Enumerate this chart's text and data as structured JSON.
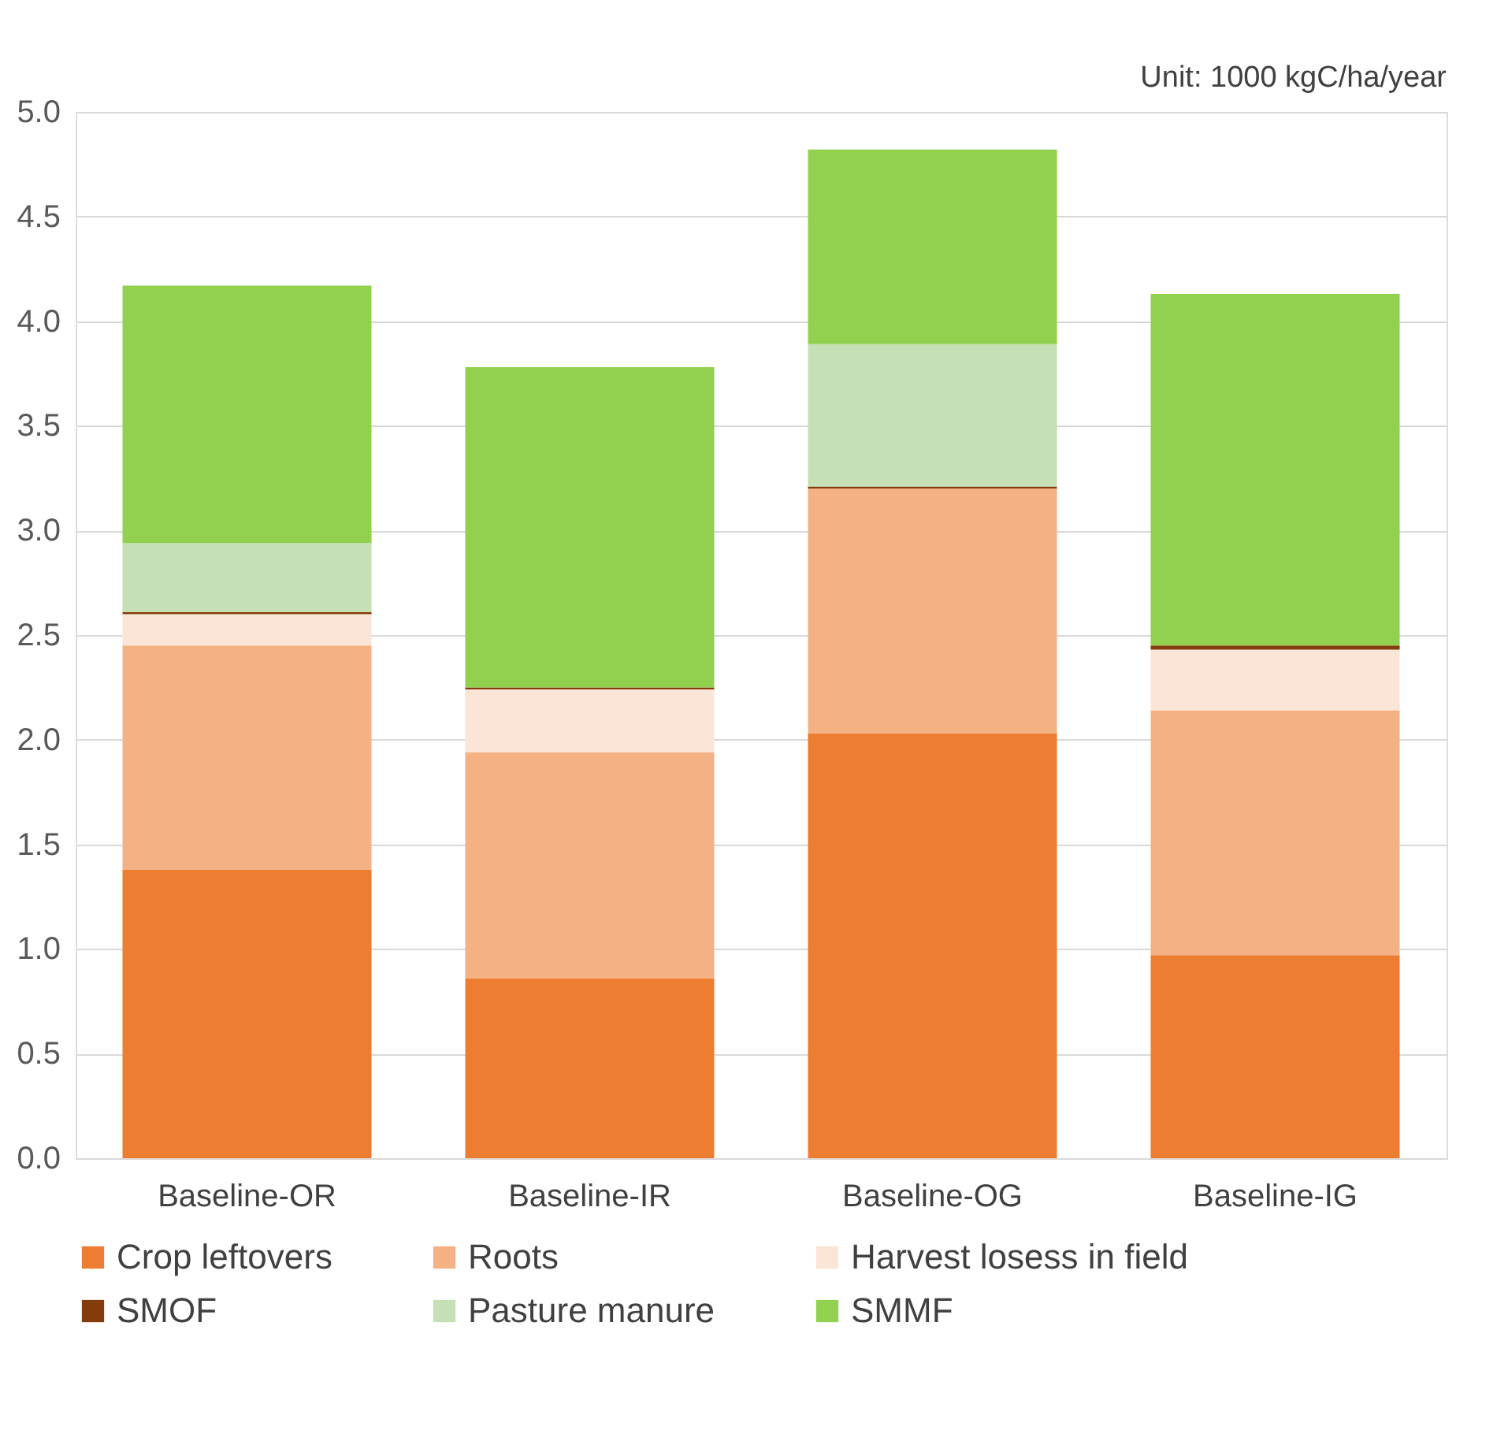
{
  "chart_data": {
    "type": "bar",
    "stacked": true,
    "categories": [
      "Baseline-OR",
      "Baseline-IR",
      "Baseline-OG",
      "Baseline-IG"
    ],
    "series": [
      {
        "name": "Crop leftovers",
        "color": "#ed7d31",
        "values": [
          1.38,
          0.86,
          2.03,
          0.97
        ]
      },
      {
        "name": "Roots",
        "color": "#f4b183",
        "values": [
          1.07,
          1.08,
          1.17,
          1.17
        ]
      },
      {
        "name": "Harvest losess in field",
        "color": "#fbe5d6",
        "values": [
          0.15,
          0.3,
          0,
          0.29
        ]
      },
      {
        "name": "SMOF",
        "color": "#843c0c",
        "values": [
          0.01,
          0.01,
          0.01,
          0.02
        ]
      },
      {
        "name": "Pasture manure",
        "color": "#c5e0b4",
        "values": [
          0.33,
          0,
          0.68,
          0
        ]
      },
      {
        "name": "SMMF",
        "color": "#92d050",
        "values": [
          1.23,
          1.53,
          0.93,
          1.68
        ]
      }
    ],
    "ylim": [
      0,
      5.0
    ],
    "yticks": [
      {
        "value": 0,
        "label": "0.0"
      },
      {
        "value": 0.5,
        "label": "0.5"
      },
      {
        "value": 1,
        "label": "1.0"
      },
      {
        "value": 1.5,
        "label": "1.5"
      },
      {
        "value": 2,
        "label": "2.0"
      },
      {
        "value": 2.5,
        "label": "2.5"
      },
      {
        "value": 3,
        "label": "3.0"
      },
      {
        "value": 3.5,
        "label": "3.5"
      },
      {
        "value": 4,
        "label": "4.0"
      },
      {
        "value": 4.5,
        "label": "4.5"
      },
      {
        "value": 5,
        "label": "5.0"
      }
    ],
    "grid": "y",
    "legend": "bottom",
    "annotations": [
      "Unit: 1000 kgC/ha/year"
    ]
  }
}
